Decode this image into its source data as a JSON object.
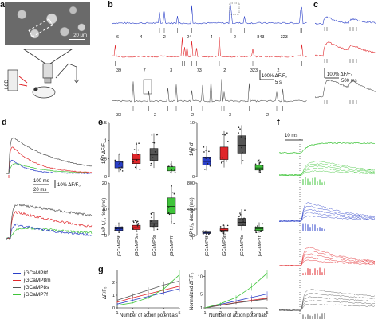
{
  "panels": {
    "a": "a",
    "b": "b",
    "c": "c",
    "d": "d",
    "e": "e",
    "f": "f",
    "g": "g"
  },
  "scale_bars": {
    "a_scale": "20 μm",
    "b_amp": "100% ΔF/F₀",
    "b_time": "5 s",
    "c_amp": "100% ΔF/F₀",
    "c_time": "500 ms",
    "d_time1": "100 ms",
    "d_amp": "10% ΔF/F₀",
    "d_time2": "20 ms",
    "f_time": "10 ms"
  },
  "a_labels": {
    "lcd": "LCD"
  },
  "b_spike_counts": {
    "blue": [
      "6",
      "4",
      "2",
      "24",
      "4",
      "2",
      "843",
      "323"
    ],
    "red": [
      "39",
      "7",
      "3",
      "73",
      "2",
      "323",
      "2"
    ],
    "gray": [
      "33",
      "2",
      "2",
      "3",
      "2"
    ]
  },
  "legend": [
    {
      "name": "jGCaMP8f",
      "color": "#2a3fc8"
    },
    {
      "name": "jGCaMP8m",
      "color": "#e0262a"
    },
    {
      "name": "jGCaMP8s",
      "color": "#555555"
    },
    {
      "name": "jGCaMP7f",
      "color": "#3fc43a"
    }
  ],
  "e_axes": {
    "tl_ylabel": "1AP ΔF/F₀",
    "tr_ylabel": "1AP d'",
    "bl_ylabel": "1AP t₁/₂, rise (ms)",
    "br_ylabel": "1AP t₁/₂, decay (ms)",
    "tl_ticks": [
      "1.5",
      "1",
      "0.5",
      "0"
    ],
    "tr_ticks": [
      "10",
      "5",
      "0"
    ],
    "bl_ticks": [
      "20",
      "10",
      "0"
    ],
    "br_ticks": [
      "800",
      "400",
      "0"
    ],
    "categories": [
      "jGCaMP8f",
      "jGCaMP8m",
      "jGCaMP8s",
      "jGCaMP7f"
    ]
  },
  "g_axes": {
    "left_ylabel": "ΔF/F₀",
    "right_ylabel": "Normalized ΔF/F₀",
    "xlabel": "Number of action potentials",
    "left_yticks": [
      "2",
      "1",
      "0"
    ],
    "right_yticks": [
      "10",
      "5",
      "1"
    ],
    "xticks": [
      "1",
      "2",
      "3",
      "4",
      "5"
    ]
  },
  "chart_data": [
    {
      "type": "bar",
      "title": "",
      "ylabel": "1AP ΔF/F₀",
      "categories": [
        "jGCaMP8f",
        "jGCaMP8m",
        "jGCaMP8s",
        "jGCaMP7f"
      ],
      "values": [
        0.32,
        0.48,
        0.6,
        0.21
      ],
      "ylim": [
        0,
        1.5
      ]
    },
    {
      "type": "bar",
      "title": "",
      "ylabel": "1AP d'",
      "categories": [
        "jGCaMP8f",
        "jGCaMP8m",
        "jGCaMP8s",
        "jGCaMP7f"
      ],
      "values": [
        2.8,
        4.2,
        5.8,
        1.6
      ],
      "ylim": [
        0,
        10
      ]
    },
    {
      "type": "bar",
      "title": "",
      "ylabel": "1AP t₁/₂, rise (ms)",
      "categories": [
        "jGCaMP8f",
        "jGCaMP8m",
        "jGCaMP8s",
        "jGCaMP7f"
      ],
      "values": [
        2.5,
        3,
        4.5,
        11
      ],
      "ylim": [
        0,
        20
      ]
    },
    {
      "type": "bar",
      "title": "",
      "ylabel": "1AP t₁/₂, decay (ms)",
      "categories": [
        "jGCaMP8f",
        "jGCaMP8m",
        "jGCaMP8s",
        "jGCaMP7f"
      ],
      "values": [
        40,
        80,
        200,
        100
      ],
      "ylim": [
        0,
        800
      ]
    },
    {
      "type": "line",
      "title": "",
      "xlabel": "Number of action potentials",
      "ylabel": "ΔF/F₀",
      "x": [
        1,
        2,
        3,
        4,
        5
      ],
      "series": [
        {
          "name": "jGCaMP8f",
          "values": [
            0.3,
            0.6,
            0.9,
            1.2,
            1.5
          ]
        },
        {
          "name": "jGCaMP8m",
          "values": [
            0.45,
            0.8,
            1.1,
            1.4,
            1.7
          ]
        },
        {
          "name": "jGCaMP8s",
          "values": [
            0.6,
            1.0,
            1.4,
            1.8,
            2.1
          ]
        },
        {
          "name": "jGCaMP7f",
          "values": [
            0.2,
            0.4,
            0.8,
            1.5,
            2.6
          ]
        }
      ],
      "ylim": [
        0,
        3
      ]
    },
    {
      "type": "line",
      "title": "",
      "xlabel": "Number of action potentials",
      "ylabel": "Normalized ΔF/F₀",
      "x": [
        1,
        2,
        3,
        4,
        5
      ],
      "series": [
        {
          "name": "jGCaMP8f",
          "values": [
            1,
            2,
            3,
            4,
            5
          ]
        },
        {
          "name": "jGCaMP8m",
          "values": [
            1,
            1.8,
            2.5,
            3.2,
            3.8
          ]
        },
        {
          "name": "jGCaMP8s",
          "values": [
            1,
            1.7,
            2.4,
            3.0,
            3.6
          ]
        },
        {
          "name": "jGCaMP7f",
          "values": [
            1,
            2.2,
            4.0,
            7.0,
            11.0
          ]
        }
      ],
      "ylim": [
        1,
        12
      ]
    }
  ]
}
